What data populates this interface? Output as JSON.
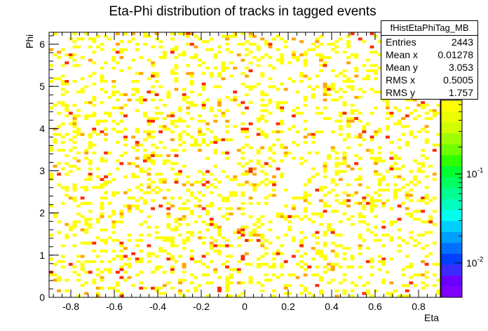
{
  "chart_data": {
    "type": "heatmap",
    "title": "Eta-Phi distribution of tracks in tagged events",
    "xlabel": "Eta",
    "ylabel": "Phi",
    "xlim": [
      -0.9,
      0.9
    ],
    "ylim": [
      0,
      6.2832
    ],
    "x_ticks": [
      "-0.8",
      "-0.6",
      "-0.4",
      "-0.2",
      "0",
      "0.2",
      "0.4",
      "0.6",
      "0.8"
    ],
    "y_ticks": [
      "0",
      "1",
      "2",
      "3",
      "4",
      "5",
      "6"
    ],
    "z_scale": "log",
    "z_ticks": [
      "10^{-1}",
      "10^{-2}"
    ],
    "bins": {
      "nx": 100,
      "ny": 100
    },
    "colors": {
      "low": "#ffff00",
      "mid": "#ffa500",
      "high": "#ff2a00"
    },
    "stats": {
      "name": "fHistEtaPhiTag_MB",
      "entries_label": "Entries",
      "entries": "2443",
      "mean_x_label": "Mean x",
      "mean_x": "0.01278",
      "mean_y_label": "Mean y",
      "mean_y": "3.053",
      "rms_x_label": "RMS x",
      "rms_x": "0.5005",
      "rms_y_label": "RMS y",
      "rms_y": "1.757"
    }
  }
}
